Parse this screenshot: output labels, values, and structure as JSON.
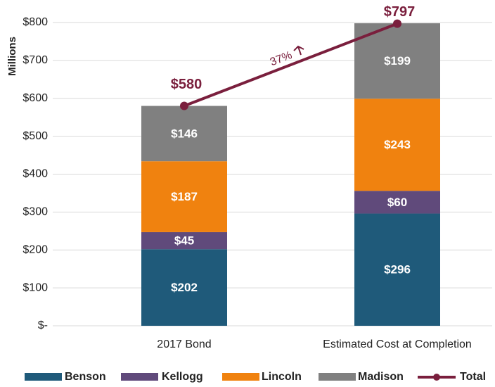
{
  "chart_data": {
    "type": "stacked_bar_line",
    "y_label": "Millions",
    "categories": [
      "2017 Bond",
      "Estimated Cost at Completion"
    ],
    "series": [
      {
        "name": "Benson",
        "color": "#1f5a7a",
        "values": [
          202,
          296
        ],
        "value_labels": [
          "$202",
          "$296"
        ]
      },
      {
        "name": "Kellogg",
        "color": "#604a7b",
        "values": [
          45,
          60
        ],
        "value_labels": [
          "$45",
          "$60"
        ]
      },
      {
        "name": "Lincoln",
        "color": "#f0820f",
        "values": [
          187,
          243
        ],
        "value_labels": [
          "$187",
          "$243"
        ]
      },
      {
        "name": "Madison",
        "color": "#808080",
        "values": [
          146,
          199
        ],
        "value_labels": [
          "$146",
          "$199"
        ]
      }
    ],
    "line_series": {
      "name": "Total",
      "color": "#7a1f3d",
      "values": [
        580,
        797
      ],
      "value_labels": [
        "$580",
        "$797"
      ]
    },
    "annotation": "37%",
    "ylim": [
      0,
      800
    ],
    "yticks": [
      {
        "value": 0,
        "label": "$-"
      },
      {
        "value": 100,
        "label": "$100"
      },
      {
        "value": 200,
        "label": "$200"
      },
      {
        "value": 300,
        "label": "$300"
      },
      {
        "value": 400,
        "label": "$400"
      },
      {
        "value": 500,
        "label": "$500"
      },
      {
        "value": 600,
        "label": "$600"
      },
      {
        "value": 700,
        "label": "$700"
      },
      {
        "value": 800,
        "label": "$800"
      }
    ],
    "grid": true
  }
}
